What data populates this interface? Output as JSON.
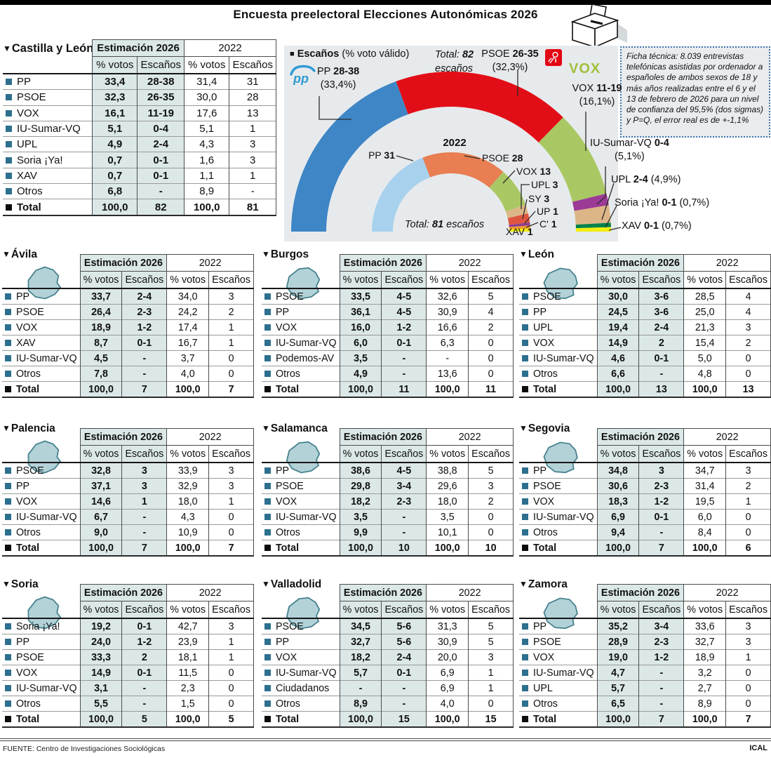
{
  "page": {
    "title": "Encuesta preelectoral Elecciones Autonómicas 2026",
    "footer_source": "FUENTE: Centro de Investigaciones Sociológicas",
    "footer_credit": "ICAL"
  },
  "table_headers": {
    "group_2026": "Estimación 2026",
    "group_2022": "2022",
    "col_votes": "% votos",
    "col_seats": "Escaños"
  },
  "ficha": {
    "text": "Ficha técnica: 8.039 entrevistas telefónicas asistidas por ordenador a españoles de ambos sexos de 18 y más años realizadas entre el 6 y el 13 de febrero de 2026 para un nivel de confianza del 95,5% (dos sigmas) y P=Q, el error real es de +-1,1%"
  },
  "chart": {
    "legend_bold": "Escaños",
    "legend_rest": "(% voto válido)",
    "inner_year": "2022",
    "total_2026": {
      "word": "Total:",
      "value": "82",
      "unit": "escaños"
    },
    "total_2022": {
      "word": "Total:",
      "value": "81",
      "unit": "escaños"
    },
    "outer_labels": [
      {
        "name": "PP",
        "range": "28-38",
        "pct": "(33,4%)"
      },
      {
        "name": "PSOE",
        "range": "26-35",
        "pct": "(32,3%)"
      },
      {
        "name": "VOX",
        "range": "11-19",
        "pct": "(16,1%)"
      },
      {
        "name": "IU-Sumar-VQ",
        "range": "0-4",
        "pct": "(5,1%)"
      },
      {
        "name": "UPL",
        "range": "2-4",
        "pct": "(4,9%)"
      },
      {
        "name": "Soria ¡Ya!",
        "range": "0-1",
        "pct": "(0,7%)"
      },
      {
        "name": "XAV",
        "range": "0-1",
        "pct": "(0,7%)"
      }
    ],
    "inner_labels": [
      {
        "name": "PP",
        "seats": "31"
      },
      {
        "name": "PSOE",
        "seats": "28"
      },
      {
        "name": "VOX",
        "seats": "13"
      },
      {
        "name": "UPL",
        "seats": "3"
      },
      {
        "name": "SY",
        "seats": "3"
      },
      {
        "name": "UP",
        "seats": "1"
      },
      {
        "name": "C'",
        "seats": "1"
      },
      {
        "name": "XAV",
        "seats": "1"
      }
    ]
  },
  "chart_data": [
    {
      "type": "donut-semicircle",
      "name": "Estimación 2026 — Escaños (% voto válido)",
      "total_seats": 82,
      "total_label": "Total: 82 escaños",
      "segments": [
        {
          "party": "PP",
          "seats_range": "28-38",
          "pct_votes": 33.4,
          "arc_value": 33,
          "color": "#3e86c6"
        },
        {
          "party": "PSOE",
          "seats_range": "26-35",
          "pct_votes": 32.3,
          "arc_value": 30.5,
          "color": "#e20e17"
        },
        {
          "party": "VOX",
          "seats_range": "11-19",
          "pct_votes": 16.1,
          "arc_value": 15,
          "color": "#a9c863"
        },
        {
          "party": "IU-Sumar-VQ",
          "seats_range": "0-4",
          "pct_votes": 5.1,
          "arc_value": 2,
          "color": "#9c3a96"
        },
        {
          "party": "UPL",
          "seats_range": "2-4",
          "pct_votes": 4.9,
          "arc_value": 3,
          "color": "#dcb687"
        },
        {
          "party": "Soria ¡Ya!",
          "seats_range": "0-1",
          "pct_votes": 0.7,
          "arc_value": 0.75,
          "color": "#00824c"
        },
        {
          "party": "XAV",
          "seats_range": "0-1",
          "pct_votes": 0.7,
          "arc_value": 0.75,
          "color": "#f2ee10"
        }
      ]
    },
    {
      "type": "donut-semicircle",
      "name": "2022",
      "total_seats": 81,
      "total_label": "Total: 81 escaños",
      "segments": [
        {
          "party": "PP",
          "seats": 31,
          "arc_value": 31,
          "color": "#a7d1ed"
        },
        {
          "party": "PSOE",
          "seats": 28,
          "arc_value": 28,
          "color": "#e87e52"
        },
        {
          "party": "VOX",
          "seats": 13,
          "arc_value": 13,
          "color": "#a9c863"
        },
        {
          "party": "UPL",
          "seats": 3,
          "arc_value": 3,
          "color": "#dcb687"
        },
        {
          "party": "SY",
          "seats": 3,
          "arc_value": 3,
          "color": "#e05540"
        },
        {
          "party": "UP",
          "seats": 1,
          "arc_value": 1,
          "color": "#8e3f8f"
        },
        {
          "party": "C'",
          "seats": 1,
          "arc_value": 1,
          "color": "#f39b2a"
        },
        {
          "party": "XAV",
          "seats": 1,
          "arc_value": 1,
          "color": "#f2ee10"
        }
      ]
    }
  ],
  "region_table": {
    "name": "Castilla y León",
    "rows": [
      {
        "party": "PP",
        "v26": "33,4",
        "s26": "28-38",
        "v22": "31,4",
        "s22": "31"
      },
      {
        "party": "PSOE",
        "v26": "32,3",
        "s26": "26-35",
        "v22": "30,0",
        "s22": "28"
      },
      {
        "party": "VOX",
        "v26": "16,1",
        "s26": "11-19",
        "v22": "17,6",
        "s22": "13"
      },
      {
        "party": "IU-Sumar-VQ",
        "v26": "5,1",
        "s26": "0-4",
        "v22": "5,1",
        "s22": "1"
      },
      {
        "party": "UPL",
        "v26": "4,9",
        "s26": "2-4",
        "v22": "4,3",
        "s22": "3"
      },
      {
        "party": "Soria ¡Ya!",
        "v26": "0,7",
        "s26": "0-1",
        "v22": "1,6",
        "s22": "3"
      },
      {
        "party": "XAV",
        "v26": "0,7",
        "s26": "0-1",
        "v22": "1,1",
        "s22": "1"
      },
      {
        "party": "Otros",
        "v26": "6,8",
        "s26": "-",
        "v22": "8,9",
        "s22": "-"
      },
      {
        "party": "Total",
        "v26": "100,0",
        "s26": "82",
        "v22": "100,0",
        "s22": "81"
      }
    ]
  },
  "provinces": [
    {
      "name": "Ávila",
      "rows": [
        {
          "party": "PP",
          "v26": "33,7",
          "s26": "2-4",
          "v22": "34,0",
          "s22": "3"
        },
        {
          "party": "PSOE",
          "v26": "26,4",
          "s26": "2-3",
          "v22": "24,2",
          "s22": "2"
        },
        {
          "party": "VOX",
          "v26": "18,9",
          "s26": "1-2",
          "v22": "17,4",
          "s22": "1"
        },
        {
          "party": "XAV",
          "v26": "8,7",
          "s26": "0-1",
          "v22": "16,7",
          "s22": "1"
        },
        {
          "party": "IU-Sumar-VQ",
          "v26": "4,5",
          "s26": "-",
          "v22": "3,7",
          "s22": "0"
        },
        {
          "party": "Otros",
          "v26": "7,8",
          "s26": "-",
          "v22": "4,0",
          "s22": "0"
        },
        {
          "party": "Total",
          "v26": "100,0",
          "s26": "7",
          "v22": "100,0",
          "s22": "7"
        }
      ]
    },
    {
      "name": "Burgos",
      "rows": [
        {
          "party": "PSOE",
          "v26": "33,5",
          "s26": "4-5",
          "v22": "32,6",
          "s22": "5"
        },
        {
          "party": "PP",
          "v26": "36,1",
          "s26": "4-5",
          "v22": "30,9",
          "s22": "4"
        },
        {
          "party": "VOX",
          "v26": "16,0",
          "s26": "1-2",
          "v22": "16,6",
          "s22": "2"
        },
        {
          "party": "IU-Sumar-VQ",
          "v26": "6,0",
          "s26": "0-1",
          "v22": "6,3",
          "s22": "0"
        },
        {
          "party": "Podemos-AV",
          "v26": "3,5",
          "s26": "-",
          "v22": "-",
          "s22": "0"
        },
        {
          "party": "Otros",
          "v26": "4,9",
          "s26": "-",
          "v22": "13,6",
          "s22": "0"
        },
        {
          "party": "Total",
          "v26": "100,0",
          "s26": "11",
          "v22": "100,0",
          "s22": "11"
        }
      ]
    },
    {
      "name": "León",
      "rows": [
        {
          "party": "PSOE",
          "v26": "30,0",
          "s26": "3-6",
          "v22": "28,5",
          "s22": "4"
        },
        {
          "party": "PP",
          "v26": "24,5",
          "s26": "3-6",
          "v22": "25,0",
          "s22": "4"
        },
        {
          "party": "UPL",
          "v26": "19,4",
          "s26": "2-4",
          "v22": "21,3",
          "s22": "3"
        },
        {
          "party": "VOX",
          "v26": "14,9",
          "s26": "2",
          "v22": "15,4",
          "s22": "2"
        },
        {
          "party": "IU-Sumar-VQ",
          "v26": "4,6",
          "s26": "0-1",
          "v22": "5,0",
          "s22": "0"
        },
        {
          "party": "Otros",
          "v26": "6,6",
          "s26": "-",
          "v22": "4,8",
          "s22": "0"
        },
        {
          "party": "Total",
          "v26": "100,0",
          "s26": "13",
          "v22": "100,0",
          "s22": "13"
        }
      ]
    },
    {
      "name": "Palencia",
      "rows": [
        {
          "party": "PSOE",
          "v26": "32,8",
          "s26": "3",
          "v22": "33,9",
          "s22": "3"
        },
        {
          "party": "PP",
          "v26": "37,1",
          "s26": "3",
          "v22": "32,9",
          "s22": "3"
        },
        {
          "party": "VOX",
          "v26": "14,6",
          "s26": "1",
          "v22": "18,0",
          "s22": "1"
        },
        {
          "party": "IU-Sumar-VQ",
          "v26": "6,7",
          "s26": "-",
          "v22": "4,3",
          "s22": "0"
        },
        {
          "party": "Otros",
          "v26": "9,0",
          "s26": "-",
          "v22": "10,9",
          "s22": "0"
        },
        {
          "party": "Total",
          "v26": "100,0",
          "s26": "7",
          "v22": "100,0",
          "s22": "7"
        }
      ]
    },
    {
      "name": "Salamanca",
      "rows": [
        {
          "party": "PP",
          "v26": "38,6",
          "s26": "4-5",
          "v22": "38,8",
          "s22": "5"
        },
        {
          "party": "PSOE",
          "v26": "29,8",
          "s26": "3-4",
          "v22": "29,6",
          "s22": "3"
        },
        {
          "party": "VOX",
          "v26": "18,2",
          "s26": "2-3",
          "v22": "18,0",
          "s22": "2"
        },
        {
          "party": "IU-Sumar-VQ",
          "v26": "3,5",
          "s26": "-",
          "v22": "3,5",
          "s22": "0"
        },
        {
          "party": "Otros",
          "v26": "9,9",
          "s26": "-",
          "v22": "10,1",
          "s22": "0"
        },
        {
          "party": "Total",
          "v26": "100,0",
          "s26": "10",
          "v22": "100,0",
          "s22": "10"
        }
      ]
    },
    {
      "name": "Segovia",
      "rows": [
        {
          "party": "PP",
          "v26": "34,8",
          "s26": "3",
          "v22": "34,7",
          "s22": "3"
        },
        {
          "party": "PSOE",
          "v26": "30,6",
          "s26": "2-3",
          "v22": "31,4",
          "s22": "2"
        },
        {
          "party": "VOX",
          "v26": "18,3",
          "s26": "1-2",
          "v22": "19,5",
          "s22": "1"
        },
        {
          "party": "IU-Sumar-VQ",
          "v26": "6,9",
          "s26": "0-1",
          "v22": "6,0",
          "s22": "0"
        },
        {
          "party": "Otros",
          "v26": "9,4",
          "s26": "-",
          "v22": "8,4",
          "s22": "0"
        },
        {
          "party": "Total",
          "v26": "100,0",
          "s26": "7",
          "v22": "100,0",
          "s22": "6"
        }
      ]
    },
    {
      "name": "Soria",
      "rows": [
        {
          "party": "Soria ¡Ya!",
          "v26": "19,2",
          "s26": "0-1",
          "v22": "42,7",
          "s22": "3"
        },
        {
          "party": "PP",
          "v26": "24,0",
          "s26": "1-2",
          "v22": "23,9",
          "s22": "1"
        },
        {
          "party": "PSOE",
          "v26": "33,3",
          "s26": "2",
          "v22": "18,1",
          "s22": "1"
        },
        {
          "party": "VOX",
          "v26": "14,9",
          "s26": "0-1",
          "v22": "11,5",
          "s22": "0"
        },
        {
          "party": "IU-Sumar-VQ",
          "v26": "3,1",
          "s26": "-",
          "v22": "2,3",
          "s22": "0"
        },
        {
          "party": "Otros",
          "v26": "5,5",
          "s26": "-",
          "v22": "1,5",
          "s22": "0"
        },
        {
          "party": "Total",
          "v26": "100,0",
          "s26": "5",
          "v22": "100,0",
          "s22": "5"
        }
      ]
    },
    {
      "name": "Valladolid",
      "rows": [
        {
          "party": "PSOE",
          "v26": "34,5",
          "s26": "5-6",
          "v22": "31,3",
          "s22": "5"
        },
        {
          "party": "PP",
          "v26": "32,7",
          "s26": "5-6",
          "v22": "30,9",
          "s22": "5"
        },
        {
          "party": "VOX",
          "v26": "18,2",
          "s26": "2-4",
          "v22": "20,0",
          "s22": "3"
        },
        {
          "party": "IU-Sumar-VQ",
          "v26": "5,7",
          "s26": "0-1",
          "v22": "6,9",
          "s22": "1"
        },
        {
          "party": "Ciudadanos",
          "v26": "-",
          "s26": "-",
          "v22": "6,9",
          "s22": "1"
        },
        {
          "party": "Otros",
          "v26": "8,9",
          "s26": "-",
          "v22": "4,0",
          "s22": "0"
        },
        {
          "party": "Total",
          "v26": "100,0",
          "s26": "15",
          "v22": "100,0",
          "s22": "15"
        }
      ]
    },
    {
      "name": "Zamora",
      "rows": [
        {
          "party": "PP",
          "v26": "35,2",
          "s26": "3-4",
          "v22": "33,6",
          "s22": "3"
        },
        {
          "party": "PSOE",
          "v26": "28,9",
          "s26": "2-3",
          "v22": "32,7",
          "s22": "3"
        },
        {
          "party": "VOX",
          "v26": "19,0",
          "s26": "1-2",
          "v22": "18,9",
          "s22": "1"
        },
        {
          "party": "IU-Sumar-VQ",
          "v26": "4,7",
          "s26": "-",
          "v22": "3,2",
          "s22": "0"
        },
        {
          "party": "UPL",
          "v26": "5,7",
          "s26": "-",
          "v22": "2,7",
          "s22": "0"
        },
        {
          "party": "Otros",
          "v26": "6,5",
          "s26": "-",
          "v22": "8,9",
          "s22": "0"
        },
        {
          "party": "Total",
          "v26": "100,0",
          "s26": "7",
          "v22": "100,0",
          "s22": "7"
        }
      ]
    }
  ]
}
